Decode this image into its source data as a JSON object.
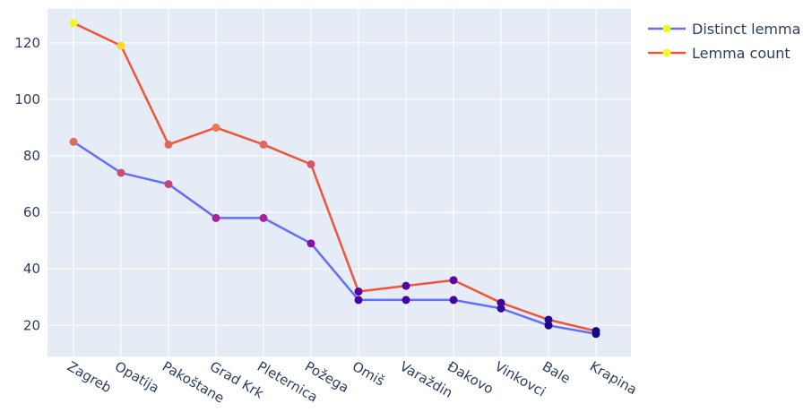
{
  "chart_data": {
    "type": "line",
    "title": "",
    "xlabel": "",
    "ylabel": "",
    "categories": [
      "Zagreb",
      "Opatija",
      "Pakoštane",
      "Grad Krk",
      "Pleternica",
      "Požega",
      "Omiš",
      "Varaždin",
      "Đakovo",
      "Vinkovci",
      "Bale",
      "Krapina"
    ],
    "ylim": [
      9,
      132
    ],
    "yticks": [
      20,
      40,
      60,
      80,
      100,
      120
    ],
    "grid": true,
    "legend_position": "top-right",
    "plot_background": "#e5ecf6",
    "grid_color": "#ffffff",
    "marker_colorscale": [
      "#0d0887",
      "#46039f",
      "#7201a8",
      "#9c179e",
      "#bd3786",
      "#d8576b",
      "#ed7953",
      "#fb9f3a",
      "#fdca26",
      "#f0f921"
    ],
    "series": [
      {
        "name": "Distinct lemma",
        "color": "#636efa",
        "values": [
          85,
          74,
          70,
          58,
          58,
          49,
          29,
          29,
          29,
          26,
          20,
          17
        ]
      },
      {
        "name": "Lemma count",
        "color": "#ef553b",
        "values": [
          127,
          119,
          84,
          90,
          84,
          77,
          32,
          34,
          36,
          28,
          22,
          18
        ]
      }
    ]
  }
}
